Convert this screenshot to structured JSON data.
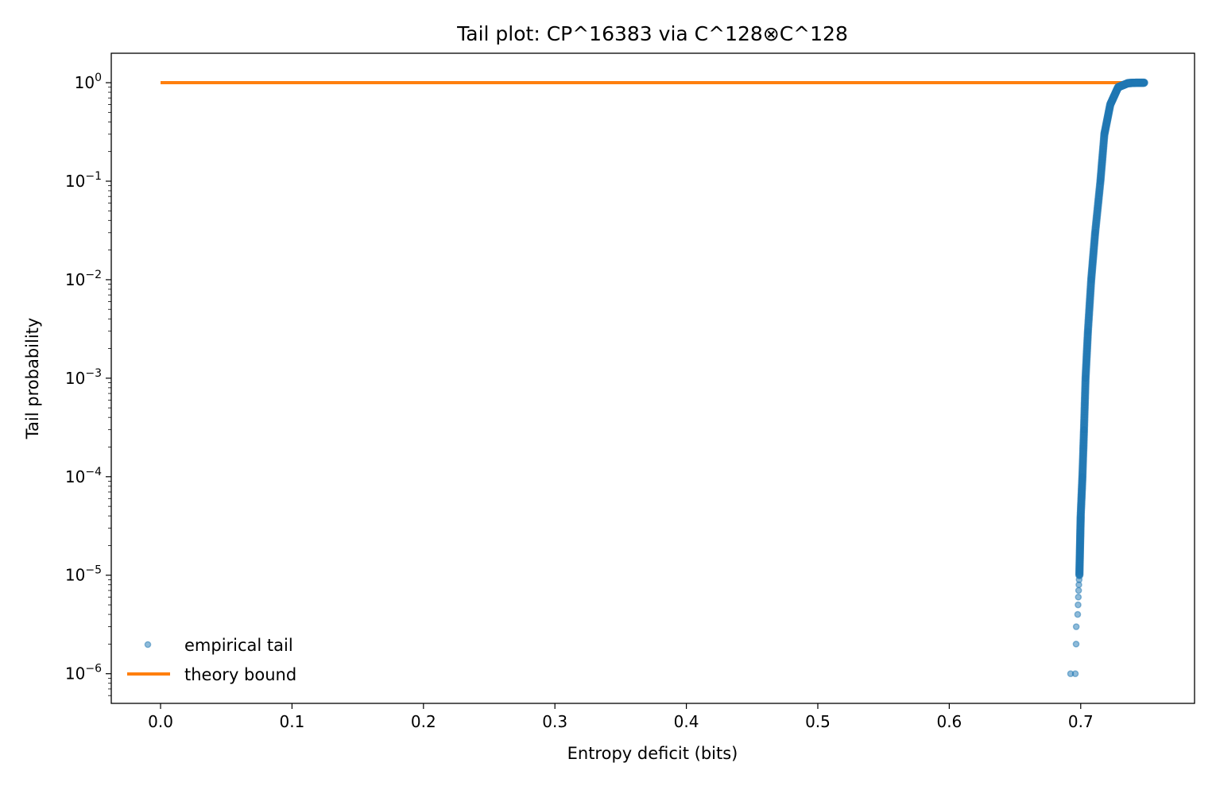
{
  "chart_data": {
    "type": "scatter",
    "title": "Tail plot: CP^16383 via C^128⊗C^128",
    "xlabel": "Entropy deficit (bits)",
    "ylabel": "Tail probability",
    "xlim": [
      -0.0375,
      0.7866
    ],
    "ylim": [
      5e-07,
      1.99
    ],
    "yscale": "log",
    "grid": false,
    "legend": "lower-left",
    "xticks": [
      {
        "value": 0.0,
        "label": "0.0"
      },
      {
        "value": 0.1,
        "label": "0.1"
      },
      {
        "value": 0.2,
        "label": "0.2"
      },
      {
        "value": 0.3,
        "label": "0.3"
      },
      {
        "value": 0.4,
        "label": "0.4"
      },
      {
        "value": 0.5,
        "label": "0.5"
      },
      {
        "value": 0.6,
        "label": "0.6"
      },
      {
        "value": 0.7,
        "label": "0.7"
      }
    ],
    "yticks": [
      {
        "value": 1,
        "base": "10",
        "exp": "0"
      },
      {
        "value": 0.1,
        "base": "10",
        "exp": "−1"
      },
      {
        "value": 0.01,
        "base": "10",
        "exp": "−2"
      },
      {
        "value": 0.001,
        "base": "10",
        "exp": "−3"
      },
      {
        "value": 0.0001,
        "base": "10",
        "exp": "−4"
      },
      {
        "value": 1e-05,
        "base": "10",
        "exp": "−5"
      },
      {
        "value": 1e-06,
        "base": "10",
        "exp": "−6"
      }
    ],
    "series": [
      {
        "name": "empirical tail",
        "kind": "scatter",
        "color": "#1f77b4",
        "alpha": 0.5,
        "points": [
          [
            0.6923,
            1e-06
          ],
          [
            0.6959,
            1e-06
          ],
          [
            0.6965,
            2e-06
          ],
          [
            0.6966,
            3e-06
          ],
          [
            0.6977,
            4e-06
          ],
          [
            0.698,
            5e-06
          ],
          [
            0.6982,
            6e-06
          ],
          [
            0.6984,
            7e-06
          ],
          [
            0.6986,
            8e-06
          ],
          [
            0.6988,
            9e-06
          ],
          [
            0.699,
            1e-05
          ],
          [
            0.6995,
            2e-05
          ],
          [
            0.7,
            4e-05
          ],
          [
            0.7013,
            0.0001
          ],
          [
            0.7025,
            0.0003
          ],
          [
            0.7037,
            0.001
          ],
          [
            0.7055,
            0.003
          ],
          [
            0.708,
            0.01
          ],
          [
            0.711,
            0.03
          ],
          [
            0.715,
            0.1
          ],
          [
            0.718,
            0.3
          ],
          [
            0.7225,
            0.6
          ],
          [
            0.7285,
            0.9
          ],
          [
            0.736,
            0.99
          ],
          [
            0.742,
            0.999
          ],
          [
            0.7485,
            1.0
          ]
        ]
      },
      {
        "name": "theory bound",
        "kind": "line",
        "color": "#ff7f0e",
        "points": [
          [
            0.0,
            1.0
          ],
          [
            0.7485,
            1.0
          ]
        ]
      }
    ]
  }
}
